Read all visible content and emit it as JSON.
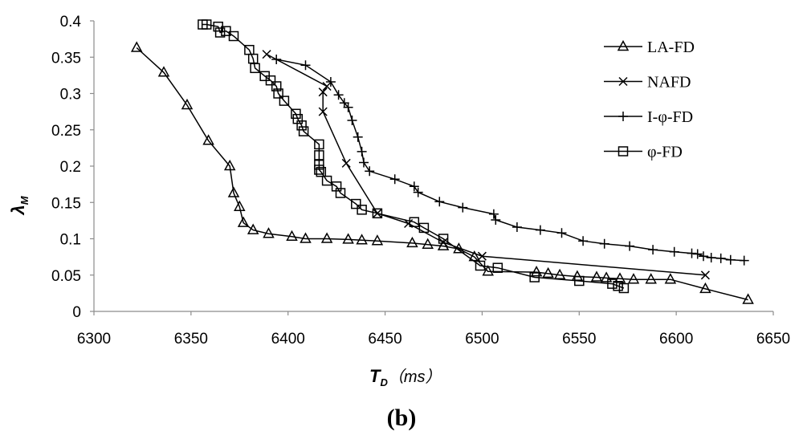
{
  "chart_data": {
    "type": "line",
    "title": "",
    "caption": "(b)",
    "xlabel": "T_D（ms）",
    "xlabel_parts": {
      "main": "T",
      "sub": "D",
      "rest": "（ms）"
    },
    "ylabel": "λ_M",
    "ylabel_parts": {
      "main": "λ",
      "sub": "M"
    },
    "xlim": [
      6300,
      6650
    ],
    "ylim": [
      0,
      0.4
    ],
    "xticks": [
      "6300",
      "6350",
      "6400",
      "6450",
      "6500",
      "6550",
      "6600",
      "6650"
    ],
    "yticks": [
      "0",
      "0.05",
      "0.1",
      "0.15",
      "0.2",
      "0.25",
      "0.3",
      "0.35",
      "0.4"
    ],
    "xtick_values": [
      6300,
      6350,
      6400,
      6450,
      6500,
      6550,
      6600,
      6650
    ],
    "ytick_values": [
      0,
      0.05,
      0.1,
      0.15,
      0.2,
      0.25,
      0.3,
      0.35,
      0.4
    ],
    "grid": false,
    "legend_position": "top-right",
    "series": [
      {
        "name": "LA-FD",
        "marker": "triangle",
        "x": [
          6322,
          6336,
          6348,
          6359,
          6370,
          6372,
          6375,
          6377,
          6382,
          6390,
          6402,
          6409,
          6420,
          6431,
          6438,
          6446,
          6464,
          6472,
          6480,
          6488,
          6496,
          6503,
          6528,
          6534,
          6540,
          6549,
          6559,
          6564,
          6571,
          6578,
          6587,
          6597,
          6615,
          6637
        ],
        "y": [
          0.363,
          0.329,
          0.284,
          0.235,
          0.2,
          0.163,
          0.144,
          0.122,
          0.112,
          0.107,
          0.103,
          0.1,
          0.1,
          0.099,
          0.098,
          0.097,
          0.094,
          0.092,
          0.09,
          0.086,
          0.075,
          0.055,
          0.054,
          0.052,
          0.05,
          0.048,
          0.047,
          0.046,
          0.045,
          0.044,
          0.044,
          0.044,
          0.031,
          0.016
        ]
      },
      {
        "name": "NAFD",
        "marker": "x",
        "x": [
          6389,
          6420,
          6418,
          6418,
          6430,
          6446,
          6462,
          6480,
          6500,
          6615
        ],
        "y": [
          0.354,
          0.31,
          0.302,
          0.275,
          0.204,
          0.135,
          0.121,
          0.095,
          0.076,
          0.05
        ]
      },
      {
        "name": "I-φ-FD",
        "marker": "plus",
        "x": [
          6394,
          6409,
          6422,
          6426,
          6429,
          6431,
          6433,
          6436,
          6438,
          6439,
          6442,
          6455,
          6465,
          6467,
          6478,
          6490,
          6506,
          6507,
          6518,
          6530,
          6541,
          6552,
          6563,
          6576,
          6588,
          6599,
          6608,
          6611,
          6614,
          6618,
          6623,
          6628,
          6635
        ],
        "y": [
          0.347,
          0.339,
          0.316,
          0.298,
          0.287,
          0.281,
          0.263,
          0.24,
          0.22,
          0.205,
          0.193,
          0.182,
          0.172,
          0.164,
          0.151,
          0.143,
          0.134,
          0.126,
          0.116,
          0.112,
          0.108,
          0.097,
          0.093,
          0.09,
          0.085,
          0.082,
          0.08,
          0.079,
          0.076,
          0.074,
          0.073,
          0.071,
          0.07
        ]
      },
      {
        "name": "φ-FD",
        "marker": "square",
        "x": [
          6356,
          6358,
          6364,
          6365,
          6368,
          6372,
          6380,
          6382,
          6383,
          6388,
          6391,
          6394,
          6395,
          6398,
          6404,
          6405,
          6407,
          6408,
          6416,
          6416,
          6416,
          6416,
          6417,
          6420,
          6425,
          6427,
          6435,
          6438,
          6446,
          6465,
          6470,
          6480,
          6499,
          6508,
          6527,
          6550,
          6567,
          6570,
          6573
        ],
        "y": [
          0.395,
          0.395,
          0.392,
          0.384,
          0.386,
          0.379,
          0.36,
          0.348,
          0.335,
          0.324,
          0.318,
          0.31,
          0.3,
          0.29,
          0.272,
          0.265,
          0.256,
          0.248,
          0.23,
          0.215,
          0.202,
          0.195,
          0.192,
          0.18,
          0.172,
          0.163,
          0.148,
          0.14,
          0.135,
          0.123,
          0.115,
          0.1,
          0.063,
          0.06,
          0.047,
          0.042,
          0.038,
          0.035,
          0.032
        ]
      }
    ]
  }
}
